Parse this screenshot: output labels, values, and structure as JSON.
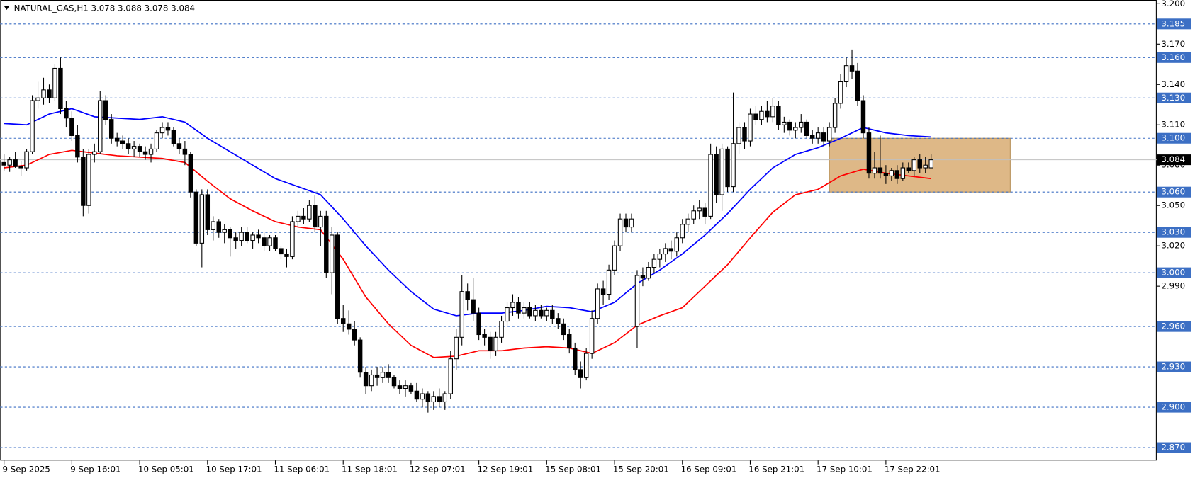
{
  "chart_data": {
    "type": "candlestick",
    "title": "NATURAL_GAS,H1  3.078 3.088 3.078 3.084",
    "up_color": "#ffffff",
    "down_color": "#000000",
    "ohlc": [
      [
        3.082,
        3.088,
        3.076,
        3.08
      ],
      [
        3.08,
        3.086,
        3.075,
        3.084
      ],
      [
        3.084,
        3.09,
        3.078,
        3.079
      ],
      [
        3.079,
        3.083,
        3.072,
        3.078
      ],
      [
        3.078,
        3.092,
        3.076,
        3.09
      ],
      [
        3.09,
        3.132,
        3.088,
        3.128
      ],
      [
        3.128,
        3.142,
        3.122,
        3.13
      ],
      [
        3.13,
        3.145,
        3.125,
        3.136
      ],
      [
        3.136,
        3.14,
        3.126,
        3.13
      ],
      [
        3.13,
        3.155,
        3.128,
        3.152
      ],
      [
        3.152,
        3.16,
        3.118,
        3.122
      ],
      [
        3.122,
        3.128,
        3.108,
        3.115
      ],
      [
        3.115,
        3.12,
        3.098,
        3.102
      ],
      [
        3.102,
        3.11,
        3.082,
        3.086
      ],
      [
        3.086,
        3.092,
        3.042,
        3.05
      ],
      [
        3.05,
        3.092,
        3.044,
        3.088
      ],
      [
        3.088,
        3.096,
        3.082,
        3.09
      ],
      [
        3.09,
        3.135,
        3.088,
        3.128
      ],
      [
        3.128,
        3.132,
        3.11,
        3.114
      ],
      [
        3.114,
        3.118,
        3.096,
        3.1
      ],
      [
        3.1,
        3.104,
        3.094,
        3.098
      ],
      [
        3.098,
        3.102,
        3.092,
        3.096
      ],
      [
        3.096,
        3.1,
        3.088,
        3.092
      ],
      [
        3.092,
        3.098,
        3.086,
        3.094
      ],
      [
        3.094,
        3.096,
        3.086,
        3.09
      ],
      [
        3.09,
        3.094,
        3.084,
        3.088
      ],
      [
        3.088,
        3.096,
        3.082,
        3.092
      ],
      [
        3.092,
        3.106,
        3.09,
        3.104
      ],
      [
        3.104,
        3.112,
        3.1,
        3.108
      ],
      [
        3.108,
        3.112,
        3.102,
        3.106
      ],
      [
        3.106,
        3.108,
        3.094,
        3.096
      ],
      [
        3.096,
        3.1,
        3.088,
        3.092
      ],
      [
        3.092,
        3.098,
        3.08,
        3.088
      ],
      [
        3.088,
        3.09,
        3.056,
        3.06
      ],
      [
        3.06,
        3.062,
        3.02,
        3.022
      ],
      [
        3.022,
        3.062,
        3.004,
        3.058
      ],
      [
        3.058,
        3.062,
        3.028,
        3.032
      ],
      [
        3.032,
        3.042,
        3.024,
        3.038
      ],
      [
        3.038,
        3.04,
        3.026,
        3.03
      ],
      [
        3.03,
        3.036,
        3.022,
        3.032
      ],
      [
        3.032,
        3.034,
        3.012,
        3.026
      ],
      [
        3.026,
        3.03,
        3.018,
        3.024
      ],
      [
        3.024,
        3.034,
        3.02,
        3.03
      ],
      [
        3.03,
        3.034,
        3.022,
        3.024
      ],
      [
        3.024,
        3.03,
        3.018,
        3.028
      ],
      [
        3.028,
        3.032,
        3.022,
        3.026
      ],
      [
        3.026,
        3.03,
        3.016,
        3.02
      ],
      [
        3.02,
        3.028,
        3.016,
        3.026
      ],
      [
        3.026,
        3.028,
        3.016,
        3.018
      ],
      [
        3.018,
        3.02,
        3.01,
        3.014
      ],
      [
        3.014,
        3.018,
        3.004,
        3.012
      ],
      [
        3.012,
        3.042,
        3.01,
        3.038
      ],
      [
        3.038,
        3.046,
        3.034,
        3.042
      ],
      [
        3.042,
        3.048,
        3.036,
        3.04
      ],
      [
        3.04,
        3.054,
        3.038,
        3.05
      ],
      [
        3.05,
        3.058,
        3.03,
        3.034
      ],
      [
        3.034,
        3.046,
        3.02,
        3.042
      ],
      [
        3.042,
        3.046,
        2.996,
        3.0
      ],
      [
        3.0,
        3.034,
        2.984,
        3.028
      ],
      [
        3.028,
        3.03,
        2.962,
        2.966
      ],
      [
        2.966,
        2.976,
        2.956,
        2.962
      ],
      [
        2.962,
        2.972,
        2.954,
        2.958
      ],
      [
        2.958,
        2.964,
        2.946,
        2.95
      ],
      [
        2.95,
        2.952,
        2.922,
        2.926
      ],
      [
        2.926,
        2.93,
        2.91,
        2.916
      ],
      [
        2.916,
        2.928,
        2.912,
        2.924
      ],
      [
        2.924,
        2.93,
        2.916,
        2.922
      ],
      [
        2.922,
        2.93,
        2.918,
        2.926
      ],
      [
        2.926,
        2.932,
        2.918,
        2.922
      ],
      [
        2.922,
        2.924,
        2.914,
        2.916
      ],
      [
        2.916,
        2.92,
        2.91,
        2.914
      ],
      [
        2.914,
        2.92,
        2.908,
        2.916
      ],
      [
        2.916,
        2.918,
        2.91,
        2.912
      ],
      [
        2.912,
        2.918,
        2.904,
        2.906
      ],
      [
        2.906,
        2.914,
        2.9,
        2.91
      ],
      [
        2.91,
        2.912,
        2.896,
        2.904
      ],
      [
        2.904,
        2.912,
        2.898,
        2.908
      ],
      [
        2.908,
        2.914,
        2.9,
        2.904
      ],
      [
        2.904,
        2.912,
        2.898,
        2.91
      ],
      [
        2.91,
        2.942,
        2.906,
        2.936
      ],
      [
        2.936,
        2.958,
        2.928,
        2.952
      ],
      [
        2.952,
        2.998,
        2.946,
        2.986
      ],
      [
        2.986,
        2.992,
        2.972,
        2.98
      ],
      [
        2.98,
        2.996,
        2.964,
        2.97
      ],
      [
        2.97,
        2.974,
        2.95,
        2.954
      ],
      [
        2.954,
        2.958,
        2.946,
        2.952
      ],
      [
        2.952,
        2.956,
        2.936,
        2.942
      ],
      [
        2.942,
        2.956,
        2.938,
        2.952
      ],
      [
        2.952,
        2.968,
        2.948,
        2.964
      ],
      [
        2.964,
        2.978,
        2.96,
        2.974
      ],
      [
        2.974,
        2.984,
        2.968,
        2.978
      ],
      [
        2.978,
        2.982,
        2.966,
        2.97
      ],
      [
        2.97,
        2.978,
        2.966,
        2.974
      ],
      [
        2.974,
        2.978,
        2.966,
        2.968
      ],
      [
        2.968,
        2.976,
        2.964,
        2.972
      ],
      [
        2.972,
        2.976,
        2.966,
        2.968
      ],
      [
        2.968,
        2.974,
        2.964,
        2.972
      ],
      [
        2.972,
        2.976,
        2.962,
        2.966
      ],
      [
        2.966,
        2.97,
        2.958,
        2.962
      ],
      [
        2.962,
        2.966,
        2.95,
        2.954
      ],
      [
        2.954,
        2.958,
        2.94,
        2.944
      ],
      [
        2.944,
        2.948,
        2.924,
        2.928
      ],
      [
        2.928,
        2.934,
        2.914,
        2.922
      ],
      [
        2.922,
        2.944,
        2.92,
        2.94
      ],
      [
        2.94,
        2.972,
        2.936,
        2.966
      ],
      [
        2.966,
        2.992,
        2.962,
        2.988
      ],
      [
        2.988,
        2.994,
        2.976,
        2.984
      ],
      [
        2.984,
        3.006,
        2.98,
        3.002
      ],
      [
        3.002,
        3.024,
        2.998,
        3.02
      ],
      [
        3.02,
        3.044,
        3.016,
        3.04
      ],
      [
        3.04,
        3.044,
        3.03,
        3.034
      ],
      [
        3.034,
        3.044,
        3.03,
        3.04
      ],
      [
        2.96,
        3.002,
        2.944,
        2.998
      ],
      [
        2.998,
        3.004,
        2.99,
        2.996
      ],
      [
        2.996,
        3.008,
        2.994,
        3.004
      ],
      [
        3.004,
        3.014,
        3.0,
        3.01
      ],
      [
        3.01,
        3.018,
        3.004,
        3.014
      ],
      [
        3.014,
        3.022,
        3.008,
        3.018
      ],
      [
        3.018,
        3.024,
        3.01,
        3.016
      ],
      [
        3.016,
        3.03,
        3.012,
        3.026
      ],
      [
        3.026,
        3.04,
        3.022,
        3.036
      ],
      [
        3.036,
        3.044,
        3.03,
        3.04
      ],
      [
        3.04,
        3.05,
        3.036,
        3.046
      ],
      [
        3.046,
        3.054,
        3.04,
        3.048
      ],
      [
        3.048,
        3.052,
        3.036,
        3.042
      ],
      [
        3.042,
        3.096,
        3.04,
        3.088
      ],
      [
        3.088,
        3.094,
        3.052,
        3.058
      ],
      [
        3.058,
        3.096,
        3.046,
        3.092
      ],
      [
        3.092,
        3.094,
        3.06,
        3.064
      ],
      [
        3.064,
        3.134,
        3.06,
        3.096
      ],
      [
        3.096,
        3.112,
        3.088,
        3.108
      ],
      [
        3.108,
        3.112,
        3.092,
        3.098
      ],
      [
        3.098,
        3.122,
        3.094,
        3.118
      ],
      [
        3.118,
        3.124,
        3.11,
        3.114
      ],
      [
        3.114,
        3.124,
        3.11,
        3.12
      ],
      [
        3.12,
        3.128,
        3.112,
        3.116
      ],
      [
        3.116,
        3.13,
        3.112,
        3.124
      ],
      [
        3.124,
        3.128,
        3.106,
        3.11
      ],
      [
        3.11,
        3.116,
        3.104,
        3.112
      ],
      [
        3.112,
        3.114,
        3.102,
        3.106
      ],
      [
        3.106,
        3.112,
        3.1,
        3.108
      ],
      [
        3.108,
        3.118,
        3.104,
        3.112
      ],
      [
        3.112,
        3.114,
        3.1,
        3.102
      ],
      [
        3.102,
        3.106,
        3.096,
        3.1
      ],
      [
        3.1,
        3.108,
        3.096,
        3.104
      ],
      [
        3.104,
        3.108,
        3.094,
        3.098
      ],
      [
        3.098,
        3.112,
        3.094,
        3.108
      ],
      [
        3.108,
        3.13,
        3.104,
        3.126
      ],
      [
        3.126,
        3.148,
        3.122,
        3.142
      ],
      [
        3.142,
        3.16,
        3.138,
        3.154
      ],
      [
        3.154,
        3.166,
        3.144,
        3.15
      ],
      [
        3.15,
        3.156,
        3.124,
        3.128
      ],
      [
        3.128,
        3.132,
        3.1,
        3.104
      ],
      [
        3.104,
        3.108,
        3.07,
        3.074
      ],
      [
        3.074,
        3.09,
        3.07,
        3.078
      ],
      [
        3.078,
        3.102,
        3.07,
        3.074
      ],
      [
        3.074,
        3.08,
        3.066,
        3.072
      ],
      [
        3.072,
        3.078,
        3.068,
        3.076
      ],
      [
        3.076,
        3.08,
        3.066,
        3.07
      ],
      [
        3.07,
        3.082,
        3.068,
        3.078
      ],
      [
        3.078,
        3.082,
        3.074,
        3.076
      ],
      [
        3.076,
        3.086,
        3.072,
        3.084
      ],
      [
        3.084,
        3.088,
        3.074,
        3.078
      ],
      [
        3.078,
        3.086,
        3.074,
        3.08
      ],
      [
        3.078,
        3.088,
        3.078,
        3.084
      ]
    ],
    "series": [
      {
        "color": "#0000ff",
        "x": [
          0,
          4,
          8,
          12,
          16,
          20,
          24,
          28,
          32,
          36,
          40,
          44,
          48,
          52,
          56,
          60,
          64,
          68,
          72,
          76,
          80,
          84,
          88,
          92,
          96,
          100,
          104,
          108,
          112,
          116,
          120,
          124,
          128,
          132,
          136,
          140,
          144,
          148,
          152,
          156,
          160,
          164
        ],
        "values": [
          3.111,
          3.11,
          3.118,
          3.122,
          3.116,
          3.115,
          3.114,
          3.116,
          3.112,
          3.1,
          3.09,
          3.08,
          3.07,
          3.064,
          3.058,
          3.04,
          3.02,
          3.002,
          2.986,
          2.973,
          2.968,
          2.97,
          2.97,
          2.972,
          2.975,
          2.974,
          2.971,
          2.978,
          2.992,
          3.002,
          3.014,
          3.028,
          3.044,
          3.062,
          3.078,
          3.088,
          3.093,
          3.1,
          3.108,
          3.104,
          3.102,
          3.101
        ]
      },
      {
        "color": "#ff0000",
        "x": [
          0,
          4,
          8,
          12,
          16,
          20,
          24,
          28,
          32,
          36,
          40,
          44,
          48,
          52,
          56,
          60,
          64,
          68,
          72,
          76,
          80,
          84,
          88,
          92,
          96,
          100,
          104,
          108,
          112,
          116,
          120,
          124,
          128,
          132,
          136,
          140,
          144,
          148,
          152,
          156,
          160,
          164
        ],
        "values": [
          3.078,
          3.08,
          3.088,
          3.091,
          3.089,
          3.087,
          3.086,
          3.085,
          3.082,
          3.068,
          3.055,
          3.046,
          3.038,
          3.034,
          3.032,
          3.01,
          2.982,
          2.962,
          2.946,
          2.937,
          2.938,
          2.942,
          2.942,
          2.944,
          2.945,
          2.944,
          2.94,
          2.948,
          2.961,
          2.968,
          2.974,
          2.99,
          3.006,
          3.026,
          3.045,
          3.058,
          3.062,
          3.072,
          3.077,
          3.074,
          3.072,
          3.07
        ]
      }
    ],
    "zone": {
      "x": [
        146,
        178
      ],
      "y": [
        3.06,
        3.1
      ],
      "color": "#deb887"
    },
    "xlim": [
      -0.67,
      203.9
    ],
    "ylim": [
      2.8604,
      3.2028
    ],
    "xticks": [
      {
        "value": 0,
        "label": "9 Sep 2025"
      },
      {
        "value": 12,
        "label": "9 Sep 16:01"
      },
      {
        "value": 24,
        "label": "10 Sep 05:01"
      },
      {
        "value": 36,
        "label": "10 Sep 17:01"
      },
      {
        "value": 48,
        "label": "11 Sep 06:01"
      },
      {
        "value": 60,
        "label": "11 Sep 18:01"
      },
      {
        "value": 72,
        "label": "12 Sep 07:01"
      },
      {
        "value": 84,
        "label": "12 Sep 19:01"
      },
      {
        "value": 96,
        "label": "15 Sep 08:01"
      },
      {
        "value": 108,
        "label": "15 Sep 20:01"
      },
      {
        "value": 120,
        "label": "16 Sep 09:01"
      },
      {
        "value": 132,
        "label": "16 Sep 21:01"
      },
      {
        "value": 144,
        "label": "17 Sep 10:01"
      },
      {
        "value": 156,
        "label": "17 Sep 22:01"
      }
    ],
    "yticks": [
      {
        "value": 3.2,
        "label": "3.200"
      },
      {
        "value": 3.17,
        "label": "3.170"
      },
      {
        "value": 3.14,
        "label": "3.140"
      },
      {
        "value": 3.11,
        "label": "3.110"
      },
      {
        "value": 3.08,
        "label": "3.080"
      },
      {
        "value": 3.05,
        "label": "3.050"
      },
      {
        "value": 3.02,
        "label": "3.020"
      },
      {
        "value": 2.99,
        "label": "2.990"
      }
    ],
    "levels": [
      {
        "value": 3.185,
        "label": "3.185"
      },
      {
        "value": 3.16,
        "label": "3.160"
      },
      {
        "value": 3.13,
        "label": "3.130"
      },
      {
        "value": 3.1,
        "label": "3.100"
      },
      {
        "value": 3.06,
        "label": "3.060"
      },
      {
        "value": 3.03,
        "label": "3.030"
      },
      {
        "value": 3.0,
        "label": "3.000"
      },
      {
        "value": 2.96,
        "label": "2.960"
      },
      {
        "value": 2.93,
        "label": "2.930"
      },
      {
        "value": 2.9,
        "label": "2.900"
      },
      {
        "value": 2.87,
        "label": "2.870"
      }
    ],
    "level_color": "#3c6fc4",
    "last": {
      "value": 3.084,
      "label": "3.084"
    }
  }
}
